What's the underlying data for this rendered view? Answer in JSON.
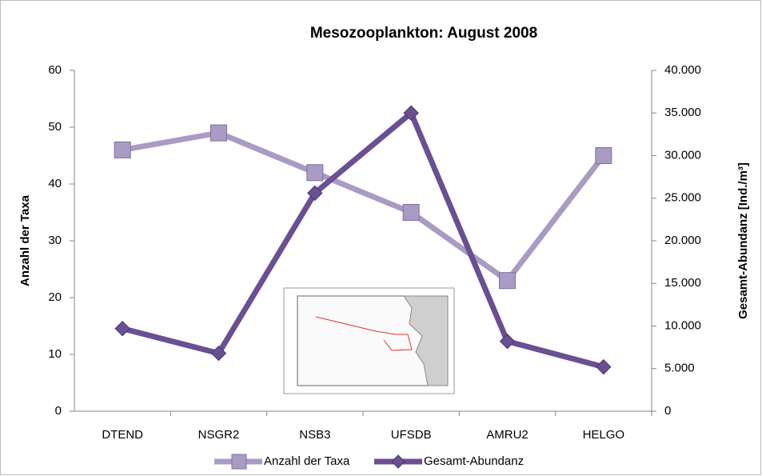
{
  "chart_data": {
    "type": "line",
    "title": "Mesozooplankton: August 2008",
    "categories": [
      "DTEND",
      "NSGR2",
      "NSB3",
      "UFSDB",
      "AMRU2",
      "HELGO"
    ],
    "ylabel": "Anzahl der Taxa",
    "y2label": "Gesamt-Abundanz [Ind./m³]",
    "ylim": [
      0,
      60
    ],
    "yticks": [
      0,
      10,
      20,
      30,
      40,
      50,
      60
    ],
    "y2lim": [
      0,
      40000
    ],
    "y2ticks": [
      0,
      {
        "value": 5000,
        "label": "5.000"
      },
      {
        "value": 10000,
        "label": "10.000"
      },
      {
        "value": 15000,
        "label": "15.000"
      },
      {
        "value": 20000,
        "label": "20.000"
      },
      {
        "value": 25000,
        "label": "25.000"
      },
      {
        "value": 30000,
        "label": "30.000"
      },
      {
        "value": 35000,
        "label": "35.000"
      },
      {
        "value": 40000,
        "label": "40.000"
      }
    ],
    "legend": "bottom",
    "series": [
      {
        "name": "Anzahl der Taxa",
        "color": "#a99bc4",
        "marker": "square",
        "values": [
          46,
          49,
          42,
          35,
          23,
          45
        ]
      },
      {
        "name": "Gesamt-Abundanz",
        "color": "#6a4f93",
        "marker": "diamond",
        "axis": "y2",
        "values": [
          9700,
          6800,
          25600,
          35000,
          8200,
          5200
        ]
      }
    ]
  }
}
